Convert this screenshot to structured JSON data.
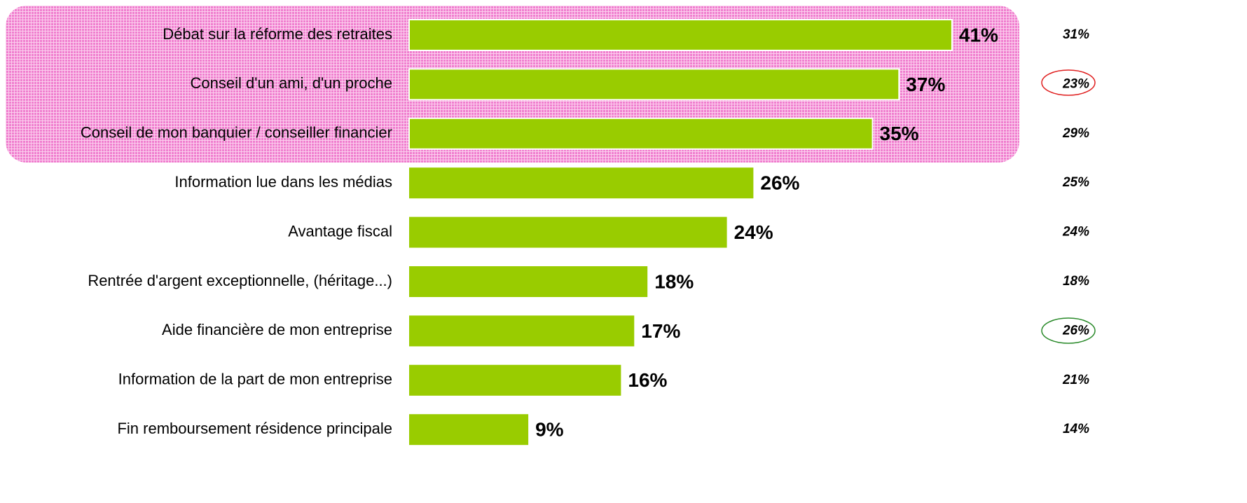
{
  "chart_data": {
    "type": "bar",
    "orientation": "horizontal",
    "categories": [
      "Débat sur la réforme des retraites",
      "Conseil d'un ami, d'un proche",
      "Conseil de mon banquier / conseiller financier",
      "Information lue dans les médias",
      "Avantage fiscal",
      "Rentrée d'argent exceptionnelle, (héritage...)",
      "Aide financière de mon entreprise",
      "Information de la part de mon entreprise",
      "Fin remboursement résidence principale"
    ],
    "series": [
      {
        "color": "#99cc00",
        "values": [
          41,
          37,
          35,
          26,
          24,
          18,
          17,
          16,
          9
        ],
        "value_labels": [
          "41%",
          "37%",
          "35%",
          "26%",
          "24%",
          "18%",
          "17%",
          "16%",
          "9%"
        ]
      },
      {
        "values": [
          31,
          23,
          29,
          25,
          24,
          18,
          26,
          21,
          14
        ],
        "value_labels": [
          "31%",
          "23%",
          "29%",
          "25%",
          "24%",
          "18%",
          "26%",
          "21%",
          "14%"
        ]
      }
    ]
  }
}
